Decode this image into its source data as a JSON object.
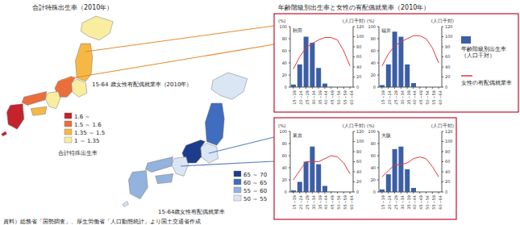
{
  "maps": [
    {
      "title": "合計特殊出生率（2010年）",
      "legend_title": "合計特殊出生率",
      "classes": [
        {
          "label": "1.6 ～",
          "color": "#c4232b"
        },
        {
          "label": "1.5 ～ 1.6",
          "color": "#ec6d3c"
        },
        {
          "label": "1.35 ～ 1.5",
          "color": "#f6b845"
        },
        {
          "label": "1 ～ 1.35",
          "color": "#f9eea0"
        }
      ],
      "region_classes": [
        3,
        2,
        3,
        1,
        3,
        1,
        2,
        0,
        0
      ]
    },
    {
      "title": "15-64 歳女性有配偶就業率（2010年）",
      "legend_title": "15-64歳女性有配偶就業率",
      "classes": [
        {
          "label": "65 ～ 70",
          "color": "#1d3d8c"
        },
        {
          "label": "60 ～ 65",
          "color": "#3f6dbf"
        },
        {
          "label": "55 ～ 60",
          "color": "#93b2de"
        },
        {
          "label": "50 ～ 55",
          "color": "#dbe6f5"
        }
      ],
      "region_classes": [
        3,
        1,
        3,
        0,
        3,
        2,
        2,
        2,
        3
      ]
    }
  ],
  "panel_title": "年齢階級別出生率と女性の有配偶就業率（2010年）",
  "source": "資料）総務省「国勢調査」、厚生労働省「人口動態統計」より国土交通省作成",
  "chart_data": [
    {
      "type": "bar",
      "title": "秋田",
      "categories": [
        "15～19",
        "20～24",
        "25～29",
        "30～34",
        "35～39",
        "40～44",
        "45～49",
        "50～54",
        "55～59",
        "60～64"
      ],
      "series": [
        {
          "name": "年齢階級別出生率（人口千対）",
          "type": "bar",
          "axis": "y2",
          "color": "#3b5ea6",
          "values": [
            5,
            45,
            100,
            88,
            38,
            7,
            0.2,
            null,
            null,
            null
          ]
        },
        {
          "name": "女性の有配偶就業率",
          "type": "line",
          "color": "#e2373c",
          "values": [
            30,
            50,
            65,
            72,
            78,
            82,
            82,
            78,
            60,
            35
          ]
        }
      ],
      "y_label": "(%)",
      "y2_label": "(人口千対)",
      "ylim": [
        0,
        100
      ],
      "yticks": [
        0,
        20,
        40,
        60,
        80,
        100
      ],
      "y2lim": [
        0,
        120
      ],
      "y2ticks": [
        0,
        20,
        40,
        60,
        80,
        100,
        120
      ]
    },
    {
      "type": "bar",
      "title": "福井",
      "categories": [
        "15～19",
        "20～24",
        "25～29",
        "30～34",
        "35～39",
        "40～44",
        "45～49",
        "50～54",
        "55～59",
        "60～64"
      ],
      "series": [
        {
          "name": "年齢階級別出生率（人口千対）",
          "type": "bar",
          "axis": "y2",
          "color": "#3b5ea6",
          "values": [
            4,
            45,
            110,
            100,
            45,
            8,
            0.2,
            null,
            null,
            null
          ]
        },
        {
          "name": "女性の有配偶就業率",
          "type": "line",
          "color": "#e2373c",
          "values": [
            35,
            55,
            68,
            75,
            80,
            85,
            85,
            80,
            65,
            40
          ]
        }
      ],
      "y_label": "(%)",
      "y2_label": "(人口千対)",
      "ylim": [
        0,
        100
      ],
      "yticks": [
        0,
        20,
        40,
        60,
        80,
        100
      ],
      "y2lim": [
        0,
        120
      ],
      "y2ticks": [
        0,
        20,
        40,
        60,
        80,
        100,
        120
      ]
    },
    {
      "type": "bar",
      "title": "東京",
      "categories": [
        "15～19",
        "20～24",
        "25～29",
        "30～34",
        "35～39",
        "40～44",
        "45～49",
        "50～54",
        "55～59",
        "60～64"
      ],
      "series": [
        {
          "name": "年齢階級別出生率（人口千対）",
          "type": "bar",
          "axis": "y2",
          "color": "#3b5ea6",
          "values": [
            3,
            20,
            60,
            90,
            55,
            12,
            0.4,
            null,
            null,
            null
          ]
        },
        {
          "name": "女性の有配偶就業率",
          "type": "line",
          "color": "#e2373c",
          "values": [
            20,
            35,
            50,
            50,
            50,
            55,
            60,
            58,
            48,
            30
          ]
        }
      ],
      "y_label": "(%)",
      "y2_label": "(人口千対)",
      "ylim": [
        0,
        100
      ],
      "yticks": [
        0,
        20,
        40,
        60,
        80,
        100
      ],
      "y2lim": [
        0,
        120
      ],
      "y2ticks": [
        0,
        20,
        40,
        60,
        80,
        100,
        120
      ]
    },
    {
      "type": "bar",
      "title": "大阪",
      "categories": [
        "15～19",
        "20～24",
        "25～29",
        "30～34",
        "35～39",
        "40～44",
        "45～49",
        "50～54",
        "55～59",
        "60～64"
      ],
      "series": [
        {
          "name": "年齢階級別出生率（人口千対）",
          "type": "bar",
          "axis": "y2",
          "color": "#3b5ea6",
          "values": [
            5,
            35,
            85,
            90,
            45,
            8,
            0.2,
            null,
            null,
            null
          ]
        },
        {
          "name": "女性の有配偶就業率",
          "type": "line",
          "color": "#e2373c",
          "values": [
            25,
            35,
            45,
            45,
            48,
            55,
            58,
            55,
            42,
            25
          ]
        }
      ],
      "y_label": "(%)",
      "y2_label": "(人口千対)",
      "ylim": [
        0,
        100
      ],
      "yticks": [
        0,
        20,
        40,
        60,
        80,
        100
      ],
      "y2lim": [
        0,
        120
      ],
      "y2ticks": [
        0,
        20,
        40,
        60,
        80,
        100,
        120
      ]
    }
  ]
}
